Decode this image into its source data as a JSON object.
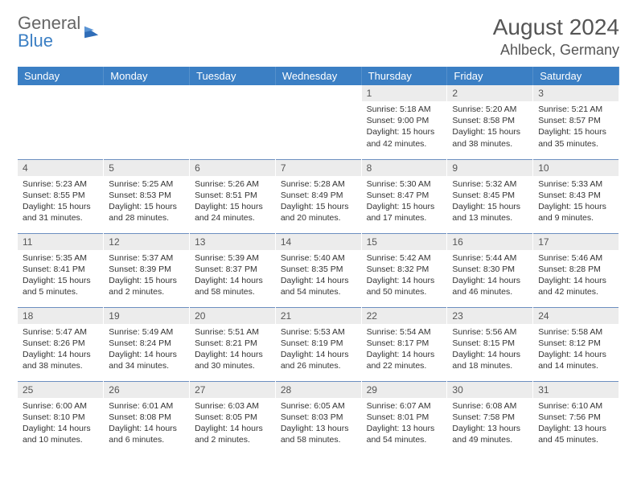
{
  "logo": {
    "word1": "General",
    "word2": "Blue"
  },
  "title": "August 2024",
  "location": "Ahlbeck, Germany",
  "colors": {
    "header_bg": "#3b7fc4",
    "daynum_bg": "#ececec",
    "row_divider": "#6c8fc0",
    "text": "#333333",
    "title_text": "#555555"
  },
  "day_labels": [
    "Sunday",
    "Monday",
    "Tuesday",
    "Wednesday",
    "Thursday",
    "Friday",
    "Saturday"
  ],
  "weeks": [
    [
      null,
      null,
      null,
      null,
      {
        "n": "1",
        "sr": "5:18 AM",
        "ss": "9:00 PM",
        "dl": "15 hours and 42 minutes."
      },
      {
        "n": "2",
        "sr": "5:20 AM",
        "ss": "8:58 PM",
        "dl": "15 hours and 38 minutes."
      },
      {
        "n": "3",
        "sr": "5:21 AM",
        "ss": "8:57 PM",
        "dl": "15 hours and 35 minutes."
      }
    ],
    [
      {
        "n": "4",
        "sr": "5:23 AM",
        "ss": "8:55 PM",
        "dl": "15 hours and 31 minutes."
      },
      {
        "n": "5",
        "sr": "5:25 AM",
        "ss": "8:53 PM",
        "dl": "15 hours and 28 minutes."
      },
      {
        "n": "6",
        "sr": "5:26 AM",
        "ss": "8:51 PM",
        "dl": "15 hours and 24 minutes."
      },
      {
        "n": "7",
        "sr": "5:28 AM",
        "ss": "8:49 PM",
        "dl": "15 hours and 20 minutes."
      },
      {
        "n": "8",
        "sr": "5:30 AM",
        "ss": "8:47 PM",
        "dl": "15 hours and 17 minutes."
      },
      {
        "n": "9",
        "sr": "5:32 AM",
        "ss": "8:45 PM",
        "dl": "15 hours and 13 minutes."
      },
      {
        "n": "10",
        "sr": "5:33 AM",
        "ss": "8:43 PM",
        "dl": "15 hours and 9 minutes."
      }
    ],
    [
      {
        "n": "11",
        "sr": "5:35 AM",
        "ss": "8:41 PM",
        "dl": "15 hours and 5 minutes."
      },
      {
        "n": "12",
        "sr": "5:37 AM",
        "ss": "8:39 PM",
        "dl": "15 hours and 2 minutes."
      },
      {
        "n": "13",
        "sr": "5:39 AM",
        "ss": "8:37 PM",
        "dl": "14 hours and 58 minutes."
      },
      {
        "n": "14",
        "sr": "5:40 AM",
        "ss": "8:35 PM",
        "dl": "14 hours and 54 minutes."
      },
      {
        "n": "15",
        "sr": "5:42 AM",
        "ss": "8:32 PM",
        "dl": "14 hours and 50 minutes."
      },
      {
        "n": "16",
        "sr": "5:44 AM",
        "ss": "8:30 PM",
        "dl": "14 hours and 46 minutes."
      },
      {
        "n": "17",
        "sr": "5:46 AM",
        "ss": "8:28 PM",
        "dl": "14 hours and 42 minutes."
      }
    ],
    [
      {
        "n": "18",
        "sr": "5:47 AM",
        "ss": "8:26 PM",
        "dl": "14 hours and 38 minutes."
      },
      {
        "n": "19",
        "sr": "5:49 AM",
        "ss": "8:24 PM",
        "dl": "14 hours and 34 minutes."
      },
      {
        "n": "20",
        "sr": "5:51 AM",
        "ss": "8:21 PM",
        "dl": "14 hours and 30 minutes."
      },
      {
        "n": "21",
        "sr": "5:53 AM",
        "ss": "8:19 PM",
        "dl": "14 hours and 26 minutes."
      },
      {
        "n": "22",
        "sr": "5:54 AM",
        "ss": "8:17 PM",
        "dl": "14 hours and 22 minutes."
      },
      {
        "n": "23",
        "sr": "5:56 AM",
        "ss": "8:15 PM",
        "dl": "14 hours and 18 minutes."
      },
      {
        "n": "24",
        "sr": "5:58 AM",
        "ss": "8:12 PM",
        "dl": "14 hours and 14 minutes."
      }
    ],
    [
      {
        "n": "25",
        "sr": "6:00 AM",
        "ss": "8:10 PM",
        "dl": "14 hours and 10 minutes."
      },
      {
        "n": "26",
        "sr": "6:01 AM",
        "ss": "8:08 PM",
        "dl": "14 hours and 6 minutes."
      },
      {
        "n": "27",
        "sr": "6:03 AM",
        "ss": "8:05 PM",
        "dl": "14 hours and 2 minutes."
      },
      {
        "n": "28",
        "sr": "6:05 AM",
        "ss": "8:03 PM",
        "dl": "13 hours and 58 minutes."
      },
      {
        "n": "29",
        "sr": "6:07 AM",
        "ss": "8:01 PM",
        "dl": "13 hours and 54 minutes."
      },
      {
        "n": "30",
        "sr": "6:08 AM",
        "ss": "7:58 PM",
        "dl": "13 hours and 49 minutes."
      },
      {
        "n": "31",
        "sr": "6:10 AM",
        "ss": "7:56 PM",
        "dl": "13 hours and 45 minutes."
      }
    ]
  ],
  "labels": {
    "sunrise": "Sunrise:",
    "sunset": "Sunset:",
    "daylight": "Daylight:"
  }
}
